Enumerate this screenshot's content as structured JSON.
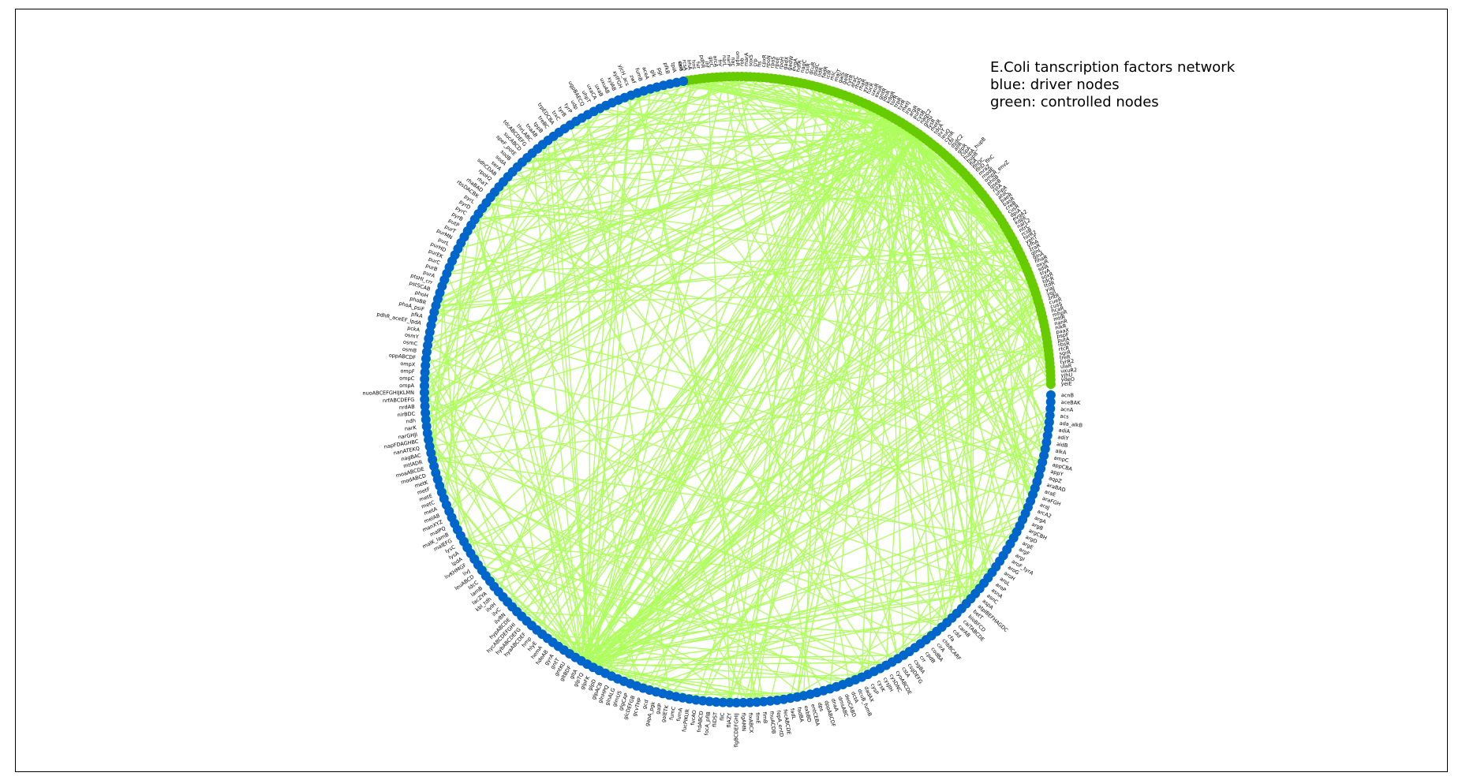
{
  "legend": {
    "line1": "E.Coli tanscription factors network",
    "line2": "blue: driver nodes",
    "line3": "green: controlled nodes"
  },
  "colors": {
    "driver": "#0066cc",
    "controlled": "#66cc00",
    "edge": "#adff5c",
    "label": "#000000",
    "frame": "#000000"
  },
  "nodes": {
    "controlled": [
      "caiF",
      "rcsA",
      "lrhA",
      "hns",
      "fur",
      "pdhR",
      "ihf",
      "glcC",
      "arcA",
      "fnr",
      "narL",
      "narP",
      "nac",
      "ompR",
      "rob",
      "marA",
      "soxS",
      "crp",
      "fis",
      "cpxR",
      "rpoN",
      "rpoS",
      "rpoE",
      "rpoH",
      "gadX",
      "gadW",
      "evgA",
      "hdfR",
      "nagC",
      "csiR",
      "dcuR",
      "dsdC",
      "lldR",
      "fadR",
      "iclR",
      "mlc",
      "malT",
      "galS",
      "galR",
      "cytR",
      "araC",
      "rhaS",
      "rhaR",
      "xylR",
      "fucR",
      "uxuR",
      "exuR",
      "gntR",
      "idnR",
      "kdgR",
      "torR",
      "trpR",
      "tyrR",
      "metJ",
      "lrp",
      "argR",
      "purR",
      "cysB",
      "nagC2",
      "glnG",
      "lysR",
      "metR",
      "tdcA",
      "ilvY",
      "leuO",
      "cynR",
      "cbl",
      "dsdC2",
      "allR",
      "glpR",
      "cspA",
      "hupA_hupB",
      "hupB",
      "fliA",
      "flhDC",
      "flhD_flhC",
      "mraZ",
      "modE",
      "ompR_envZ",
      "phoB",
      "qseB",
      "rstA",
      "uhpA",
      "atoC",
      "baeR",
      "basR",
      "creB",
      "cusR",
      "dpiA",
      "evgA2",
      "kdpE",
      "narL2",
      "ntrC",
      "rcsB",
      "torR2",
      "yehT",
      "yfhA",
      "zraR",
      "glnL",
      "glnA",
      "nhaR",
      "oxyR",
      "sdiA",
      "slyA",
      "soxR",
      "tdcR",
      "ttdR",
      "yiaJ",
      "yqjI",
      "zntR",
      "cueR",
      "cusS",
      "hcaR",
      "mhpR",
      "mtlR",
      "nanR",
      "nikR",
      "paaX",
      "pspF",
      "putA",
      "rbsR",
      "rtcR",
      "sgrR",
      "treR",
      "tyrR2",
      "ulaR",
      "uxuR2",
      "yjhU",
      "ydeO",
      "yeiE"
    ],
    "driver": [
      "acnB",
      "aceBAK",
      "acnA",
      "acs",
      "ada_alkB",
      "adiA",
      "adiY",
      "aidB",
      "alkA",
      "ampC",
      "appCBA",
      "appY",
      "aqpZ",
      "araBAD",
      "araE",
      "araFGH",
      "araJ",
      "arcA2",
      "argA",
      "argB",
      "argCBH",
      "argD",
      "argE",
      "argF",
      "argI",
      "aroF_tyrA",
      "aroG",
      "aroH",
      "aroL",
      "aroP",
      "asnA",
      "asnC",
      "aspA",
      "atpIBEFHAGDC",
      "betT",
      "bioBFCD",
      "caiTABCDE",
      "carAB",
      "cdd",
      "cfa",
      "chbBCARF",
      "cirA",
      "codBA",
      "cpdB",
      "crr",
      "csgBA",
      "csgDEFG",
      "cstA",
      "cyoABCDE",
      "cysDNC",
      "cysJIH",
      "cysK",
      "cysP",
      "dadAX",
      "dcuB_fumB",
      "dctA",
      "deoCABD",
      "dmsABC",
      "dnaA",
      "dppABCDF",
      "dps",
      "entCEBA",
      "exbBD",
      "fadBA",
      "fadL",
      "fecABCDE",
      "fepA_entD",
      "fhuACDB",
      "fimB",
      "fimE",
      "fixABCX",
      "flgAMN",
      "flgBCDEFGHIJ",
      "fliAZY",
      "fliC",
      "fliDST",
      "focA_pflB",
      "frdABCD",
      "fucAO",
      "fucPIKUR",
      "fumA",
      "fumC",
      "galETK",
      "galP",
      "gapA_pgk",
      "gcd",
      "gcvTHP",
      "glcDEFGB",
      "glgCAP",
      "glmUS",
      "glnALG",
      "glnHPQ",
      "glpACB",
      "glpD",
      "glpFK",
      "glpTQ",
      "gltA",
      "gltBDF",
      "gntKU",
      "gntT",
      "gyrA",
      "hdeAB",
      "hemA",
      "hlyE",
      "hmp",
      "hyaABCDEF",
      "hybABCDEFG",
      "hycABCDEFGHI",
      "hypABCDE",
      "ilvBN",
      "ilvC",
      "ilvIH",
      "kbl_tdh",
      "lacZYA",
      "lamB",
      "ldcC",
      "leuABCD",
      "livJ",
      "livKHMGF",
      "lpdA",
      "lysA",
      "lysC",
      "malEFG",
      "malK_lamB",
      "malPQ",
      "manXYZ",
      "melAB",
      "metA",
      "metC",
      "metE",
      "metF",
      "metK",
      "modABCD",
      "moaABCDE",
      "mtlADR",
      "nagBAC",
      "nanATEKQ",
      "napFDAGHBC",
      "narGHJI",
      "narK",
      "ndh",
      "nirBDC",
      "nrdAB",
      "nrfABCDEFG",
      "nuoABCEFGHIJKLMN",
      "ompA",
      "ompC",
      "ompF",
      "ompX",
      "oppABCDF",
      "osmB",
      "osmC",
      "osmY",
      "pckA",
      "pdhR_aceEF_lpdA",
      "pfkA",
      "phoA_psiF",
      "phoBR",
      "phoH",
      "pstSCAB",
      "ptsHI_crr",
      "purA",
      "purB",
      "purC",
      "purEK",
      "purHD",
      "purL",
      "purMN",
      "purT",
      "putP",
      "pyrB",
      "pyrC",
      "pyrD",
      "pyrL",
      "rbsDACBK",
      "rhaBAD",
      "rhaT",
      "rpoH2",
      "sdhCDAB",
      "serA",
      "sodA",
      "sodB",
      "speF_potE",
      "sucABCD",
      "tdcABCDEFG",
      "thrLABC",
      "tnaAB",
      "tppB",
      "treBC",
      "trpEDCBA",
      "trxC",
      "tyrB",
      "tyrP",
      "udp",
      "ugpBAECQ",
      "uhpT",
      "uxaCA",
      "uxaB",
      "uxuAB",
      "xylAB",
      "xylFGH",
      "yjcH_acs",
      "zwf",
      "fumB",
      "aceA",
      "glk",
      "pgi",
      "pfkB",
      "tpiA",
      "eno"
    ]
  }
}
